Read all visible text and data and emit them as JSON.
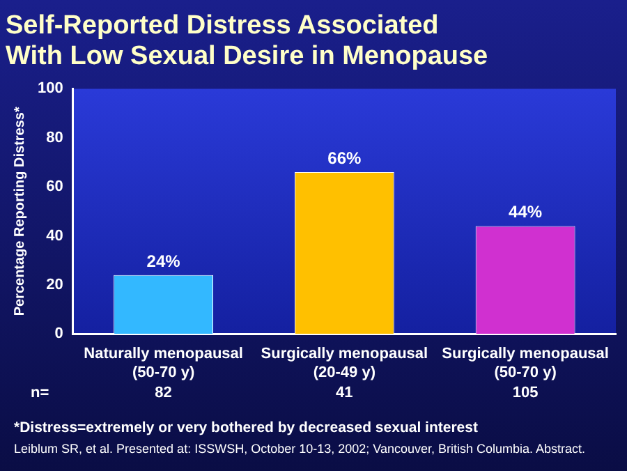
{
  "chart_data": {
    "type": "bar",
    "title": "Self-Reported Distress Associated\nWith Low Sexual Desire in Menopause",
    "ylabel": "Percentage Reporting Distress*",
    "categories": [
      "Naturally menopausal\n(50-70 y)",
      "Surgically menopausal\n(20-49 y)",
      "Surgically menopausal\n(50-70 y)"
    ],
    "values": [
      24,
      66,
      44
    ],
    "colors": [
      "#33b8ff",
      "#ffc000",
      "#d030d0"
    ],
    "value_labels": [
      "24%",
      "66%",
      "44%"
    ],
    "ylim": [
      0,
      100
    ],
    "yticks": [
      0,
      20,
      40,
      60,
      80,
      100
    ],
    "grid": false,
    "legend": false,
    "annotations": [
      "n=",
      "82",
      "41",
      "105",
      "*Distress=extremely or very bothered by decreased sexual interest",
      "Leiblum SR, et al. Presented at: ISSWSH, October 10-13, 2002; Vancouver, British Columbia. Abstract."
    ]
  }
}
